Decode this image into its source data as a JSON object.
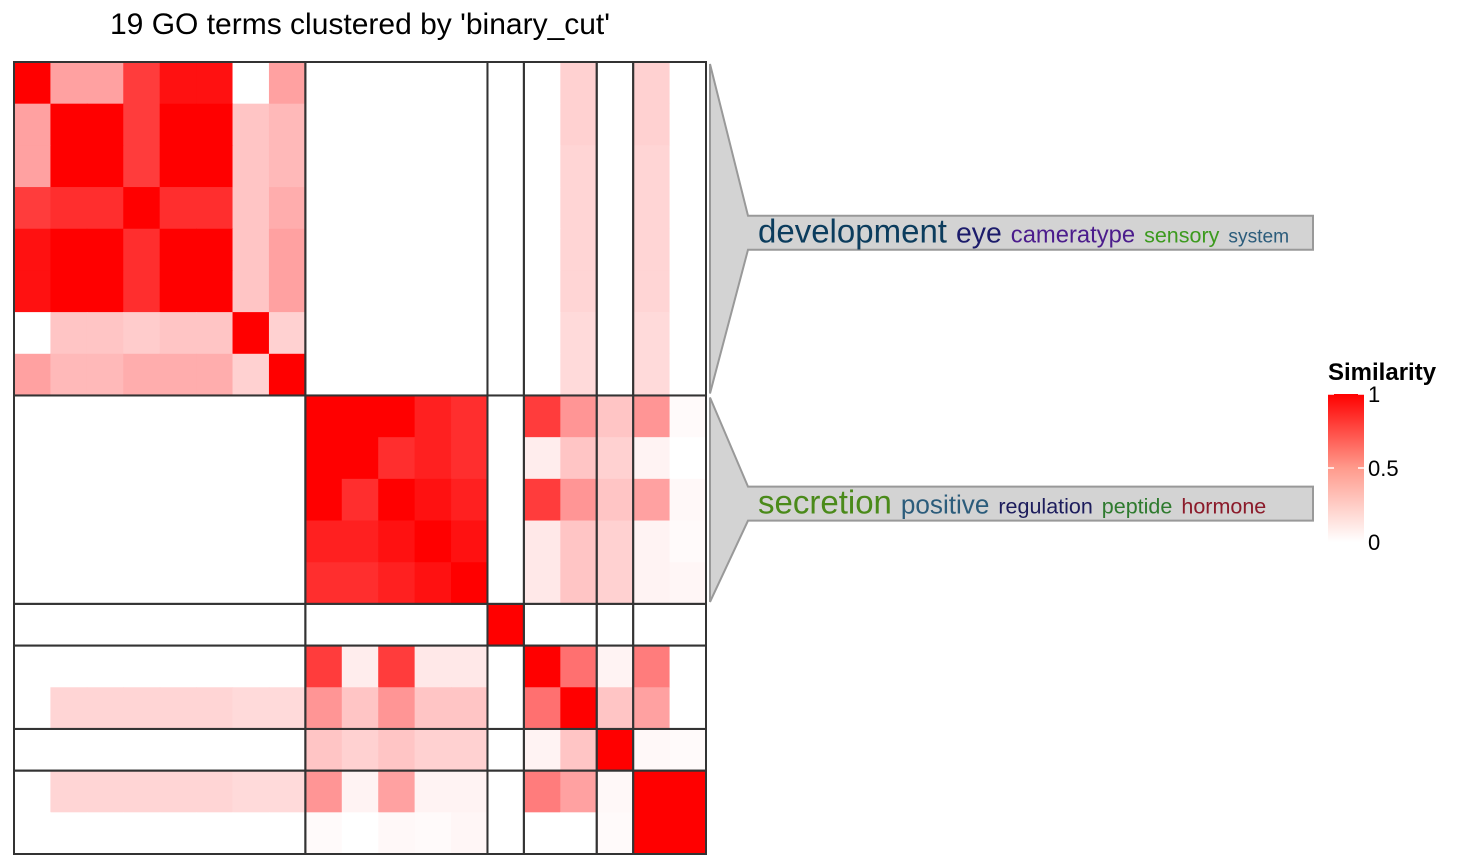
{
  "chart_data": {
    "type": "heatmap",
    "title": "19 GO terms clustered by 'binary_cut'",
    "legend": {
      "title": "Similarity",
      "ticks": [
        "1",
        "0.5",
        "0"
      ],
      "tick_values": [
        1,
        0.5,
        0
      ],
      "colors": {
        "high": "#FF0000",
        "low": "#FFFFFF"
      },
      "placement": "right"
    },
    "n_terms": 19,
    "clusters": [
      {
        "rows": [
          0,
          7
        ]
      },
      {
        "rows": [
          8,
          12
        ]
      },
      {
        "rows": [
          13,
          13
        ]
      },
      {
        "rows": [
          14,
          15
        ]
      },
      {
        "rows": [
          16,
          16
        ]
      },
      {
        "rows": [
          17,
          18
        ]
      }
    ],
    "labeled_clusters": [
      {
        "cluster": 0,
        "words": [
          {
            "text": "development",
            "color": "#0B3C5D",
            "weight": 5
          },
          {
            "text": "eye",
            "color": "#1C1C6B",
            "weight": 4
          },
          {
            "text": "cameratype",
            "color": "#4B1C8C",
            "weight": 3
          },
          {
            "text": "sensory",
            "color": "#3C9A1E",
            "weight": 2.5
          },
          {
            "text": "system",
            "color": "#2B5C7B",
            "weight": 2
          }
        ]
      },
      {
        "cluster": 1,
        "words": [
          {
            "text": "secretion",
            "color": "#4A8A1A",
            "weight": 5
          },
          {
            "text": "positive",
            "color": "#2B5C7B",
            "weight": 3.5
          },
          {
            "text": "regulation",
            "color": "#1C1C5C",
            "weight": 2.5
          },
          {
            "text": "peptide",
            "color": "#2E7A2E",
            "weight": 2.5
          },
          {
            "text": "hormone",
            "color": "#8B1A2A",
            "weight": 2.5
          }
        ]
      }
    ],
    "matrix": [
      [
        1.0,
        0.4,
        0.4,
        0.8,
        0.95,
        0.95,
        0.0,
        0.4,
        0,
        0,
        0,
        0,
        0,
        0,
        0,
        0.2,
        0,
        0.2,
        0
      ],
      [
        0.4,
        1.0,
        1.0,
        0.8,
        1.0,
        1.0,
        0.25,
        0.3,
        0,
        0,
        0,
        0,
        0,
        0,
        0,
        0.2,
        0,
        0.2,
        0
      ],
      [
        0.4,
        1.0,
        1.0,
        0.8,
        1.0,
        1.0,
        0.25,
        0.3,
        0,
        0,
        0,
        0,
        0,
        0,
        0,
        0.18,
        0,
        0.18,
        0
      ],
      [
        0.8,
        0.85,
        0.85,
        1.0,
        0.85,
        0.85,
        0.25,
        0.35,
        0,
        0,
        0,
        0,
        0,
        0,
        0,
        0.18,
        0,
        0.18,
        0
      ],
      [
        0.95,
        1.0,
        1.0,
        0.85,
        1.0,
        1.0,
        0.25,
        0.4,
        0,
        0,
        0,
        0,
        0,
        0,
        0,
        0.18,
        0,
        0.18,
        0
      ],
      [
        0.95,
        1.0,
        1.0,
        0.85,
        1.0,
        1.0,
        0.25,
        0.4,
        0,
        0,
        0,
        0,
        0,
        0,
        0,
        0.18,
        0,
        0.18,
        0
      ],
      [
        0.0,
        0.25,
        0.25,
        0.22,
        0.25,
        0.25,
        1.0,
        0.2,
        0,
        0,
        0,
        0,
        0,
        0,
        0,
        0.16,
        0,
        0.16,
        0
      ],
      [
        0.4,
        0.3,
        0.3,
        0.35,
        0.35,
        0.35,
        0.2,
        1.0,
        0,
        0,
        0,
        0,
        0,
        0,
        0,
        0.16,
        0,
        0.16,
        0
      ],
      [
        0,
        0,
        0,
        0,
        0,
        0,
        0,
        0,
        1.0,
        1.0,
        1.0,
        0.9,
        0.85,
        0,
        0.8,
        0.45,
        0.25,
        0.45,
        0.02
      ],
      [
        0,
        0,
        0,
        0,
        0,
        0,
        0,
        0,
        1.0,
        1.0,
        0.85,
        0.9,
        0.85,
        0,
        0.08,
        0.25,
        0.2,
        0.05,
        0.0
      ],
      [
        0,
        0,
        0,
        0,
        0,
        0,
        0,
        0,
        1.0,
        0.85,
        1.0,
        0.95,
        0.9,
        0,
        0.8,
        0.45,
        0.25,
        0.4,
        0.03
      ],
      [
        0,
        0,
        0,
        0,
        0,
        0,
        0,
        0,
        0.9,
        0.9,
        0.95,
        1.0,
        0.95,
        0,
        0.1,
        0.25,
        0.2,
        0.05,
        0.02
      ],
      [
        0,
        0,
        0,
        0,
        0,
        0,
        0,
        0,
        0.85,
        0.85,
        0.9,
        0.95,
        1.0,
        0,
        0.1,
        0.25,
        0.2,
        0.05,
        0.04
      ],
      [
        0,
        0,
        0,
        0,
        0,
        0,
        0,
        0,
        0,
        0,
        0,
        0,
        0,
        1.0,
        0,
        0,
        0,
        0,
        0
      ],
      [
        0,
        0,
        0,
        0,
        0,
        0,
        0,
        0,
        0.8,
        0.08,
        0.8,
        0.1,
        0.1,
        0,
        1.0,
        0.6,
        0.05,
        0.55,
        0
      ],
      [
        0,
        0.18,
        0.18,
        0.18,
        0.18,
        0.18,
        0.16,
        0.16,
        0.45,
        0.25,
        0.45,
        0.25,
        0.25,
        0,
        0.6,
        1.0,
        0.25,
        0.4,
        0
      ],
      [
        0,
        0,
        0,
        0,
        0,
        0,
        0,
        0,
        0.25,
        0.2,
        0.25,
        0.2,
        0.2,
        0,
        0.05,
        0.25,
        1.0,
        0.03,
        0.02
      ],
      [
        0,
        0.18,
        0.18,
        0.18,
        0.18,
        0.18,
        0.16,
        0.16,
        0.45,
        0.05,
        0.4,
        0.05,
        0.05,
        0,
        0.55,
        0.4,
        0.03,
        1.0,
        1.0
      ],
      [
        0,
        0,
        0,
        0,
        0,
        0,
        0,
        0,
        0.02,
        0.0,
        0.03,
        0.02,
        0.04,
        0,
        0,
        0,
        0.02,
        1.0,
        1.0
      ]
    ]
  }
}
